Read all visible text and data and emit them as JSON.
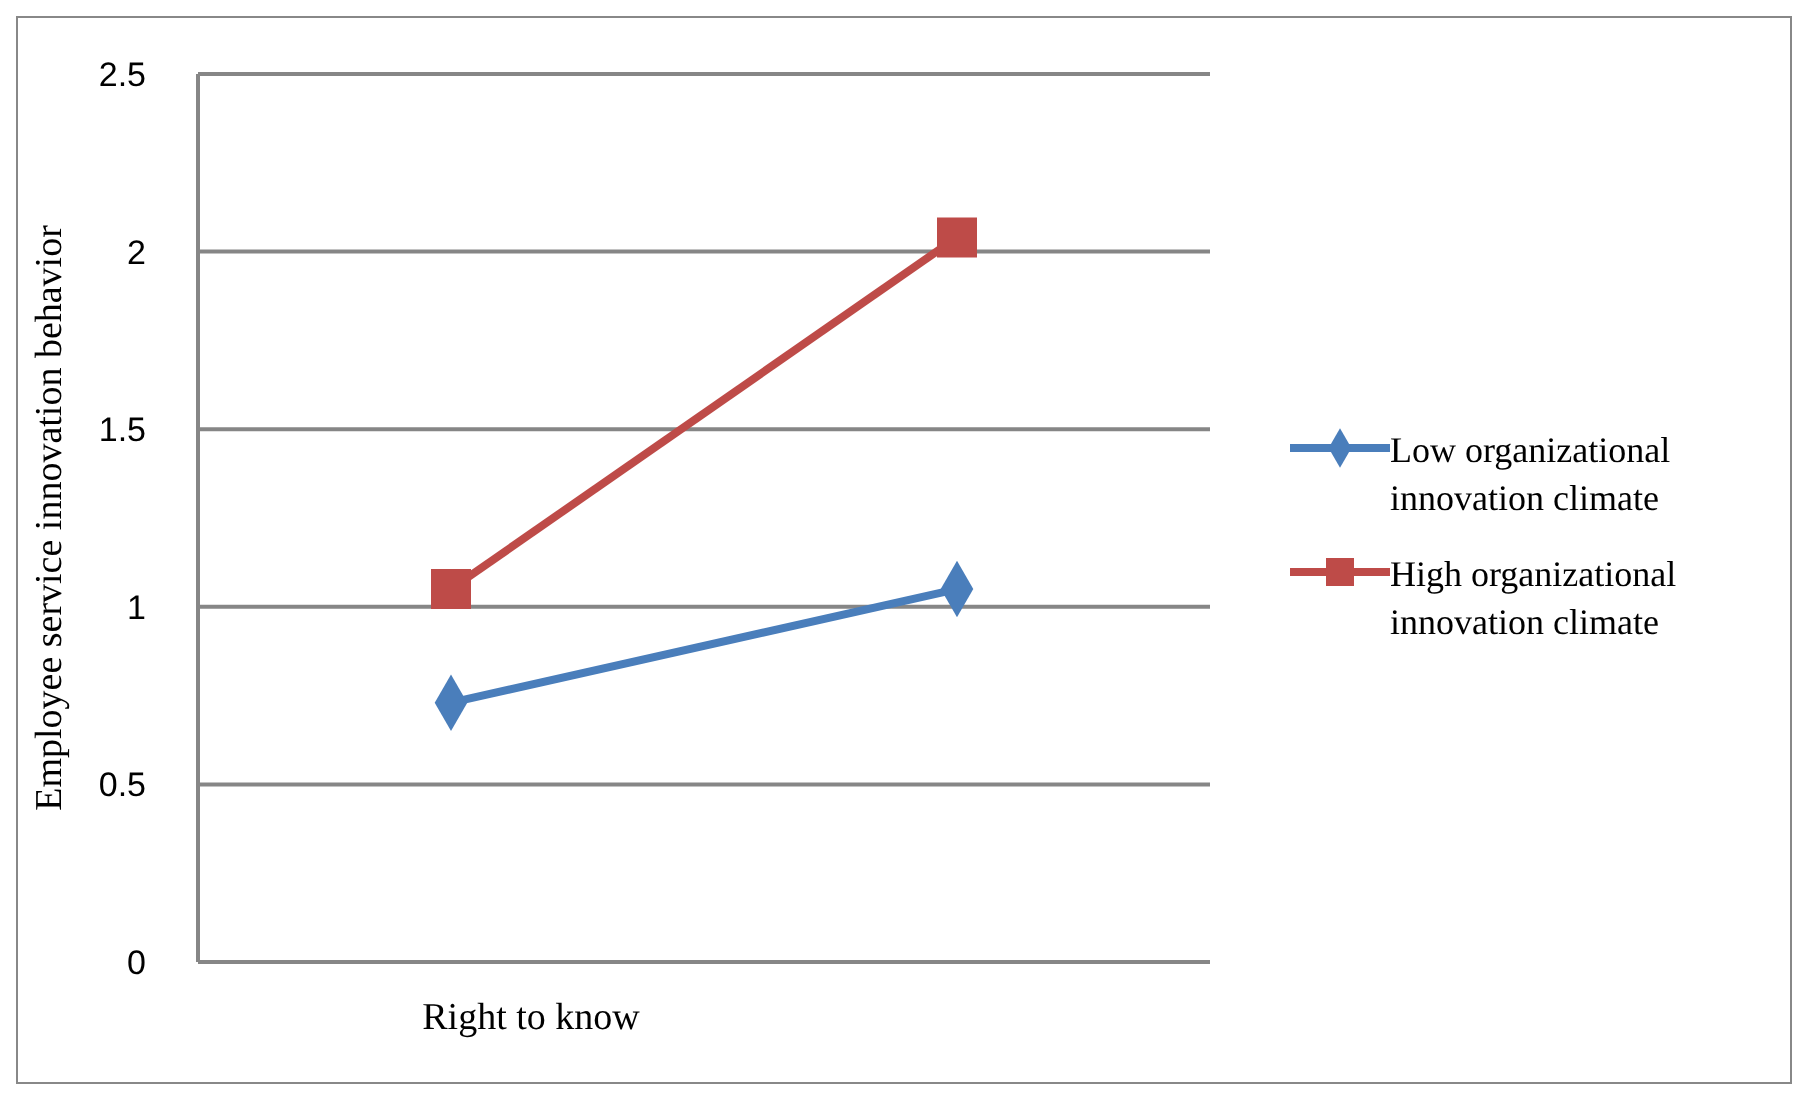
{
  "chart_data": {
    "type": "line",
    "ylabel": "Employee service innovation behavior",
    "categories": [
      "Right to know",
      null
    ],
    "series": [
      {
        "name": "Low organizational innovation climate",
        "color": "#4a7ebb",
        "values": [
          0.73,
          1.05
        ],
        "marker": "diamond"
      },
      {
        "name": "High organizational innovation climate",
        "color": "#be4b48",
        "values": [
          1.05,
          2.04
        ],
        "marker": "square"
      }
    ],
    "ylim": [
      0,
      2.5
    ],
    "yticks": [
      0,
      0.5,
      1,
      1.5,
      2,
      2.5
    ],
    "grid": "y",
    "legend": "right"
  }
}
